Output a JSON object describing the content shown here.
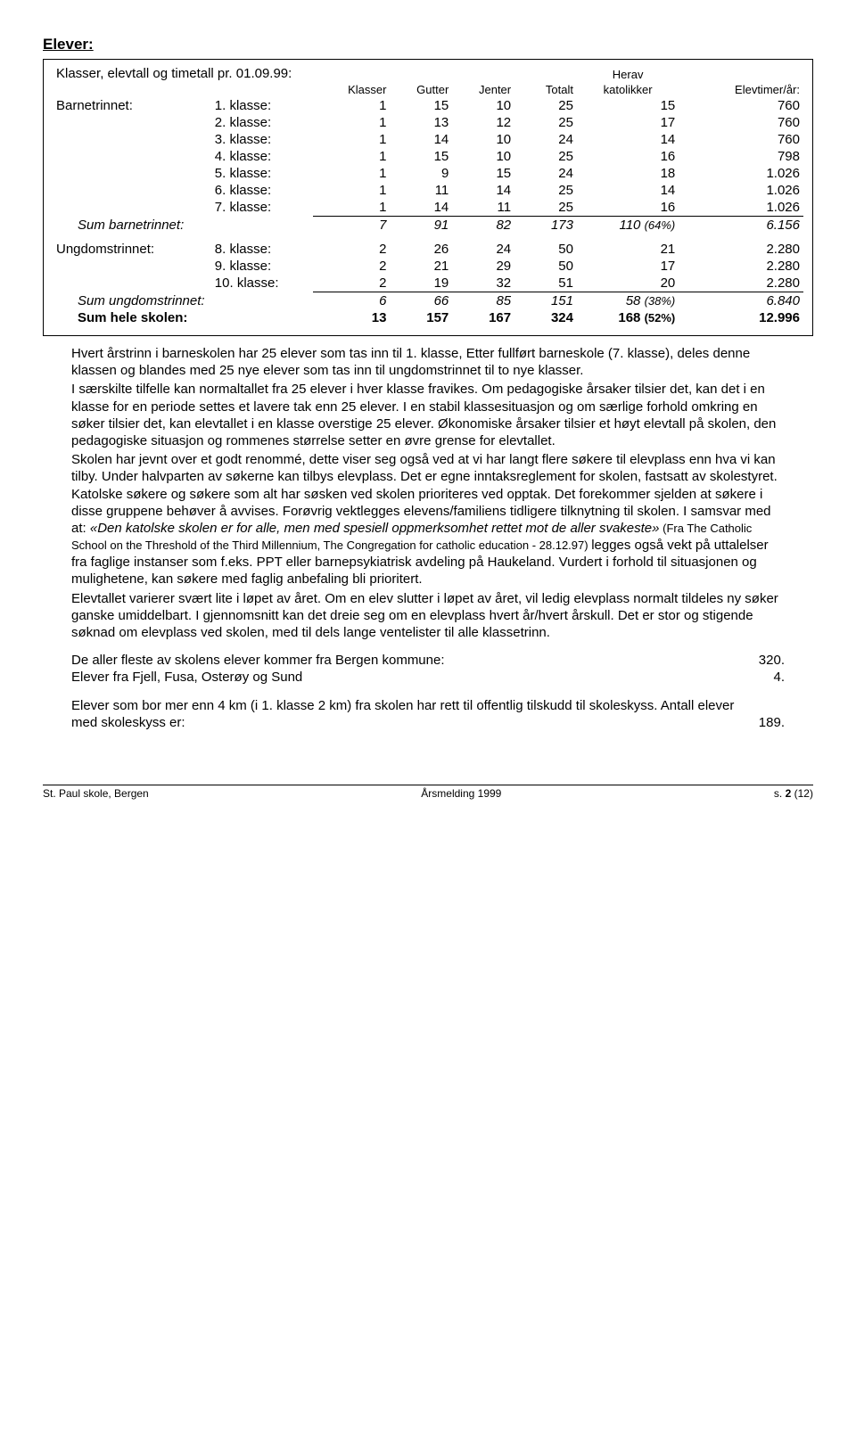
{
  "section_heading": "Elever:",
  "table": {
    "title_left": "Klasser, elevtall og timetall pr. 01.09.99:",
    "col_herav": "Herav",
    "cols": [
      "Klasser",
      "Gutter",
      "Jenter",
      "Totalt",
      "katolikker",
      "Elevtimer/år:"
    ],
    "barnetrinnet_label": "Barnetrinnet:",
    "barnetrinnet": [
      {
        "name": "1. klasse:",
        "k": 1,
        "g": 15,
        "j": 10,
        "t": 25,
        "kat": 15,
        "e": "760"
      },
      {
        "name": "2. klasse:",
        "k": 1,
        "g": 13,
        "j": 12,
        "t": 25,
        "kat": 17,
        "e": "760"
      },
      {
        "name": "3. klasse:",
        "k": 1,
        "g": 14,
        "j": 10,
        "t": 24,
        "kat": 14,
        "e": "760"
      },
      {
        "name": "4. klasse:",
        "k": 1,
        "g": 15,
        "j": 10,
        "t": 25,
        "kat": 16,
        "e": "798"
      },
      {
        "name": "5. klasse:",
        "k": 1,
        "g": 9,
        "j": 15,
        "t": 24,
        "kat": 18,
        "e": "1.026"
      },
      {
        "name": "6. klasse:",
        "k": 1,
        "g": 11,
        "j": 14,
        "t": 25,
        "kat": 14,
        "e": "1.026"
      },
      {
        "name": "7. klasse:",
        "k": 1,
        "g": 14,
        "j": 11,
        "t": 25,
        "kat": 16,
        "e": "1.026"
      }
    ],
    "sum_barnetrinnet": {
      "name": "Sum barnetrinnet:",
      "k": 7,
      "g": 91,
      "j": 82,
      "t": 173,
      "kat": "110",
      "pct": "(64%)",
      "e": "6.156"
    },
    "ungdomstrinnet_label": "Ungdomstrinnet:",
    "ungdomstrinnet": [
      {
        "name": "8. klasse:",
        "k": 2,
        "g": 26,
        "j": 24,
        "t": 50,
        "kat": 21,
        "e": "2.280"
      },
      {
        "name": "9. klasse:",
        "k": 2,
        "g": 21,
        "j": 29,
        "t": 50,
        "kat": 17,
        "e": "2.280"
      },
      {
        "name": "10. klasse:",
        "k": 2,
        "g": 19,
        "j": 32,
        "t": 51,
        "kat": 20,
        "e": "2.280"
      }
    ],
    "sum_ungdom": {
      "name": "Sum ungdomstrinnet:",
      "k": 6,
      "g": 66,
      "j": 85,
      "t": 151,
      "kat": "58",
      "pct": "(38%)",
      "e": "6.840"
    },
    "sum_total": {
      "name": "Sum hele skolen:",
      "k": 13,
      "g": 157,
      "j": 167,
      "t": 324,
      "kat": "168",
      "pct": "(52%)",
      "e": "12.996"
    }
  },
  "para1a": "Hvert årstrinn i barneskolen har 25 elever som tas inn til 1. klasse, Etter fullført barneskole (7. klasse), deles denne klassen og blandes med 25 nye elever som tas inn til ungdomstrinnet til to nye klasser.",
  "para1b": "I særskilte tilfelle kan normaltallet fra 25 elever i hver klasse fravikes. Om pedagogiske årsaker tilsier det, kan det i en klasse for en periode settes et lavere tak enn 25 elever. I en stabil klassesituasjon og om særlige forhold omkring en søker tilsier det, kan elevtallet i en klasse overstige 25 elever. Økonomiske årsaker tilsier et høyt elevtall på skolen, den pedagogiske situasjon og rommenes størrelse setter en øvre grense for elevtallet.",
  "para1c_a": "Skolen har jevnt over et godt renommé, dette viser seg også ved at vi har langt flere søkere til elevplass enn hva vi kan tilby. Under halvparten av søkerne kan tilbys elevplass. Det er egne inntaksreglement for skolen, fastsatt av skolestyret. Katolske søkere og søkere som alt har søsken ved skolen prioriteres ved opptak. Det forekommer sjelden at søkere i disse gruppene behøver å avvises. Forøvrig vektlegges elevens/familiens tidligere tilknytning til skolen. I samsvar med at: ",
  "para1c_quote": "«Den katolske skolen er for alle, men med spesiell oppmerksomhet rettet mot de aller svakeste»",
  "para1c_b_small": " (Fra The Catholic School on the Threshold of the Third Millennium, The Congregation for catholic education - 28.12.97) ",
  "para1c_c": "legges også vekt på uttalelser fra faglige instanser som f.eks. PPT eller barnepsykiatrisk avdeling på Haukeland. Vurdert i forhold til situasjonen og mulighetene, kan søkere med faglig anbefaling bli prioritert.",
  "para1d": "Elevtallet varierer svært lite i løpet av året. Om en elev slutter i løpet av året, vil ledig elevplass normalt tildeles ny søker ganske umiddelbart. I gjennomsnitt kan det dreie seg om en elevplass hvert år/hvert årskull. Det er stor og stigende søknad om elevplass ved skolen, med til dels lange ventelister til alle klassetrinn.",
  "para2_line1": "De aller fleste av skolens elever kommer fra Bergen kommune:",
  "para2_val1": "320.",
  "para2_line2": "Elever fra Fjell, Fusa, Osterøy og Sund",
  "para2_val2": "4.",
  "para3_line1": "Elever som bor mer enn 4 km (i 1. klasse 2 km) fra skolen har rett til offentlig tilskudd til skoleskyss. Antall elever med skoleskyss er:",
  "para3_val": "189.",
  "footer_left": "St. Paul skole, Bergen",
  "footer_center": "Årsmelding 1999",
  "footer_right_a": "s.",
  "footer_right_b": "2",
  "footer_right_c": "(12)"
}
